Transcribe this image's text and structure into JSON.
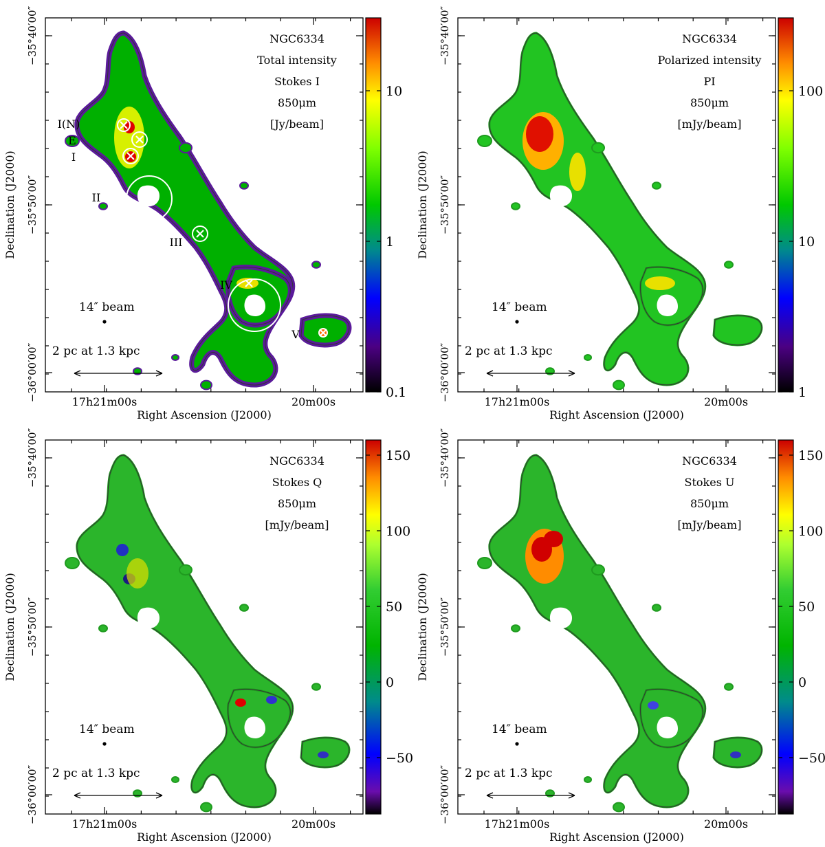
{
  "panels": [
    {
      "id": "tl",
      "label_lines": [
        "NGC6334",
        "Total intensity",
        "Stokes I",
        "850μm",
        "[Jy/beam]"
      ],
      "colorbar_ticks": [
        "10",
        "1",
        "0.1"
      ],
      "cmap": "i",
      "sources": [
        "I(N)",
        "E",
        "I",
        "II",
        "III",
        "IV",
        "V"
      ],
      "show_sources": true
    },
    {
      "id": "tr",
      "label_lines": [
        "NGC6334",
        "Polarized intensity",
        "PI",
        "850μm",
        "[mJy/beam]"
      ],
      "colorbar_ticks": [
        "100",
        "10",
        "1"
      ],
      "cmap": "pi",
      "show_sources": false
    },
    {
      "id": "bl",
      "label_lines": [
        "NGC6334",
        "Stokes Q",
        "850μm",
        "[mJy/beam]"
      ],
      "colorbar_ticks": [
        "150",
        "100",
        "50",
        "0",
        "−50"
      ],
      "cmap": "q",
      "show_sources": false
    },
    {
      "id": "br",
      "label_lines": [
        "NGC6334",
        "Stokes U",
        "850μm",
        "[mJy/beam]"
      ],
      "colorbar_ticks": [
        "150",
        "100",
        "50",
        "0",
        "−50"
      ],
      "cmap": "u",
      "show_sources": false
    }
  ],
  "axes": {
    "xlabel": "Right Ascension (J2000)",
    "ylabel": "Declination (J2000)",
    "ra_ticks": [
      "17h21m00s",
      "20m00s"
    ],
    "dec_ticks": [
      "−35°40′00″",
      "−35°50′00″",
      "−36°00′00″"
    ]
  },
  "beam_label": "14″ beam",
  "scale_label": "2 pc at 1.3 kpc"
}
